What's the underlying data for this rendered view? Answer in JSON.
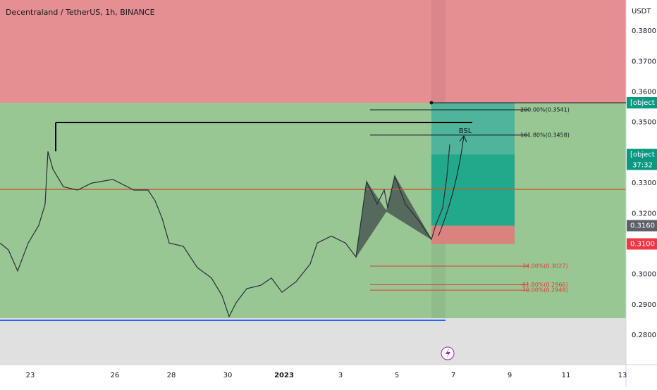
{
  "chart_data": {
    "type": "line",
    "title": "Decentraland / TetherUS, 1h, BINANCE",
    "y_unit": "USDT",
    "xlim": [
      -1.075,
      21.125
    ],
    "ylim": [
      0.2703,
      0.3902
    ],
    "xticks": [
      {
        "value": 0,
        "label": "23"
      },
      {
        "value": 3,
        "label": "26"
      },
      {
        "value": 5,
        "label": "28"
      },
      {
        "value": 7,
        "label": "30"
      },
      {
        "value": 9,
        "label": "2023"
      },
      {
        "value": 11,
        "label": "3"
      },
      {
        "value": 13,
        "label": "5"
      },
      {
        "value": 15,
        "label": "7"
      },
      {
        "value": 17,
        "label": "9"
      },
      {
        "value": 19,
        "label": "11"
      },
      {
        "value": 21,
        "label": "13"
      }
    ],
    "yticks": [
      {
        "value": 0.38,
        "label": "0.3800"
      },
      {
        "value": 0.37,
        "label": "0.3700"
      },
      {
        "value": 0.36,
        "label": "0.3600"
      },
      {
        "value": 0.35,
        "label": "0.3500"
      },
      {
        "value": 0.33,
        "label": "0.3300"
      },
      {
        "value": 0.32,
        "label": "0.3200"
      },
      {
        "value": 0.3,
        "label": "0.3000"
      },
      {
        "value": 0.29,
        "label": "0.2900"
      },
      {
        "value": 0.28,
        "label": "0.2800"
      }
    ],
    "x": [
      -1.075,
      -0.775,
      -0.45,
      -0.075,
      0.3,
      0.525,
      0.625,
      0.8,
      1.175,
      1.675,
      2.175,
      2.925,
      3.675,
      4.175,
      4.425,
      4.675,
      4.925,
      5.425,
      5.925,
      6.425,
      6.8,
      7.05,
      7.3,
      7.675,
      8.175,
      8.55,
      8.925,
      9.425,
      9.925,
      10.175,
      10.675,
      11.175,
      11.55,
      11.925,
      12.3,
      12.55,
      12.675,
      12.925,
      13.3,
      13.8,
      14.225,
      14.375,
      14.625,
      14.775,
      14.875
    ],
    "series": [
      {
        "color": "#2a2e39",
        "values": [
          0.3103,
          0.308,
          0.3011,
          0.3103,
          0.3161,
          0.3231,
          0.3404,
          0.3346,
          0.3288,
          0.3277,
          0.33,
          0.3312,
          0.3277,
          0.3277,
          0.3242,
          0.3184,
          0.3103,
          0.3092,
          0.3022,
          0.2988,
          0.293,
          0.2861,
          0.2907,
          0.2953,
          0.2964,
          0.2988,
          0.2941,
          0.2976,
          0.3034,
          0.3103,
          0.3126,
          0.3103,
          0.3057,
          0.3305,
          0.3231,
          0.3277,
          0.3219,
          0.3323,
          0.3231,
          0.3173,
          0.3115,
          0.3161,
          0.3219,
          0.3323,
          0.3427
        ]
      }
    ],
    "price_tags": [
      {
        "value": 0.3564,
        "color": "#089981"
      },
      {
        "value": 0.3394,
        "color": "#089981"
      },
      {
        "value": 0.316,
        "label": "0.3160",
        "color": "#5d606b"
      },
      {
        "value": 0.31,
        "label": "0.3100",
        "color": "#f23645"
      }
    ],
    "countdown": "37:32",
    "fib_levels": [
      {
        "value": 0.3541,
        "label": "200.00%(0.3541)",
        "color": "#131722"
      },
      {
        "value": 0.3458,
        "label": "161.80%(0.3458)",
        "color": "#131722"
      },
      {
        "value": 0.3027,
        "label": "-34.00%(0.3027)",
        "color": "#e53935"
      },
      {
        "value": 0.2966,
        "label": "-61.80%(0.2966)",
        "color": "#e53935"
      },
      {
        "value": 0.2948,
        "label": "-70.00%(0.2948)",
        "color": "#e53935"
      }
    ],
    "annotation": "BSL"
  }
}
